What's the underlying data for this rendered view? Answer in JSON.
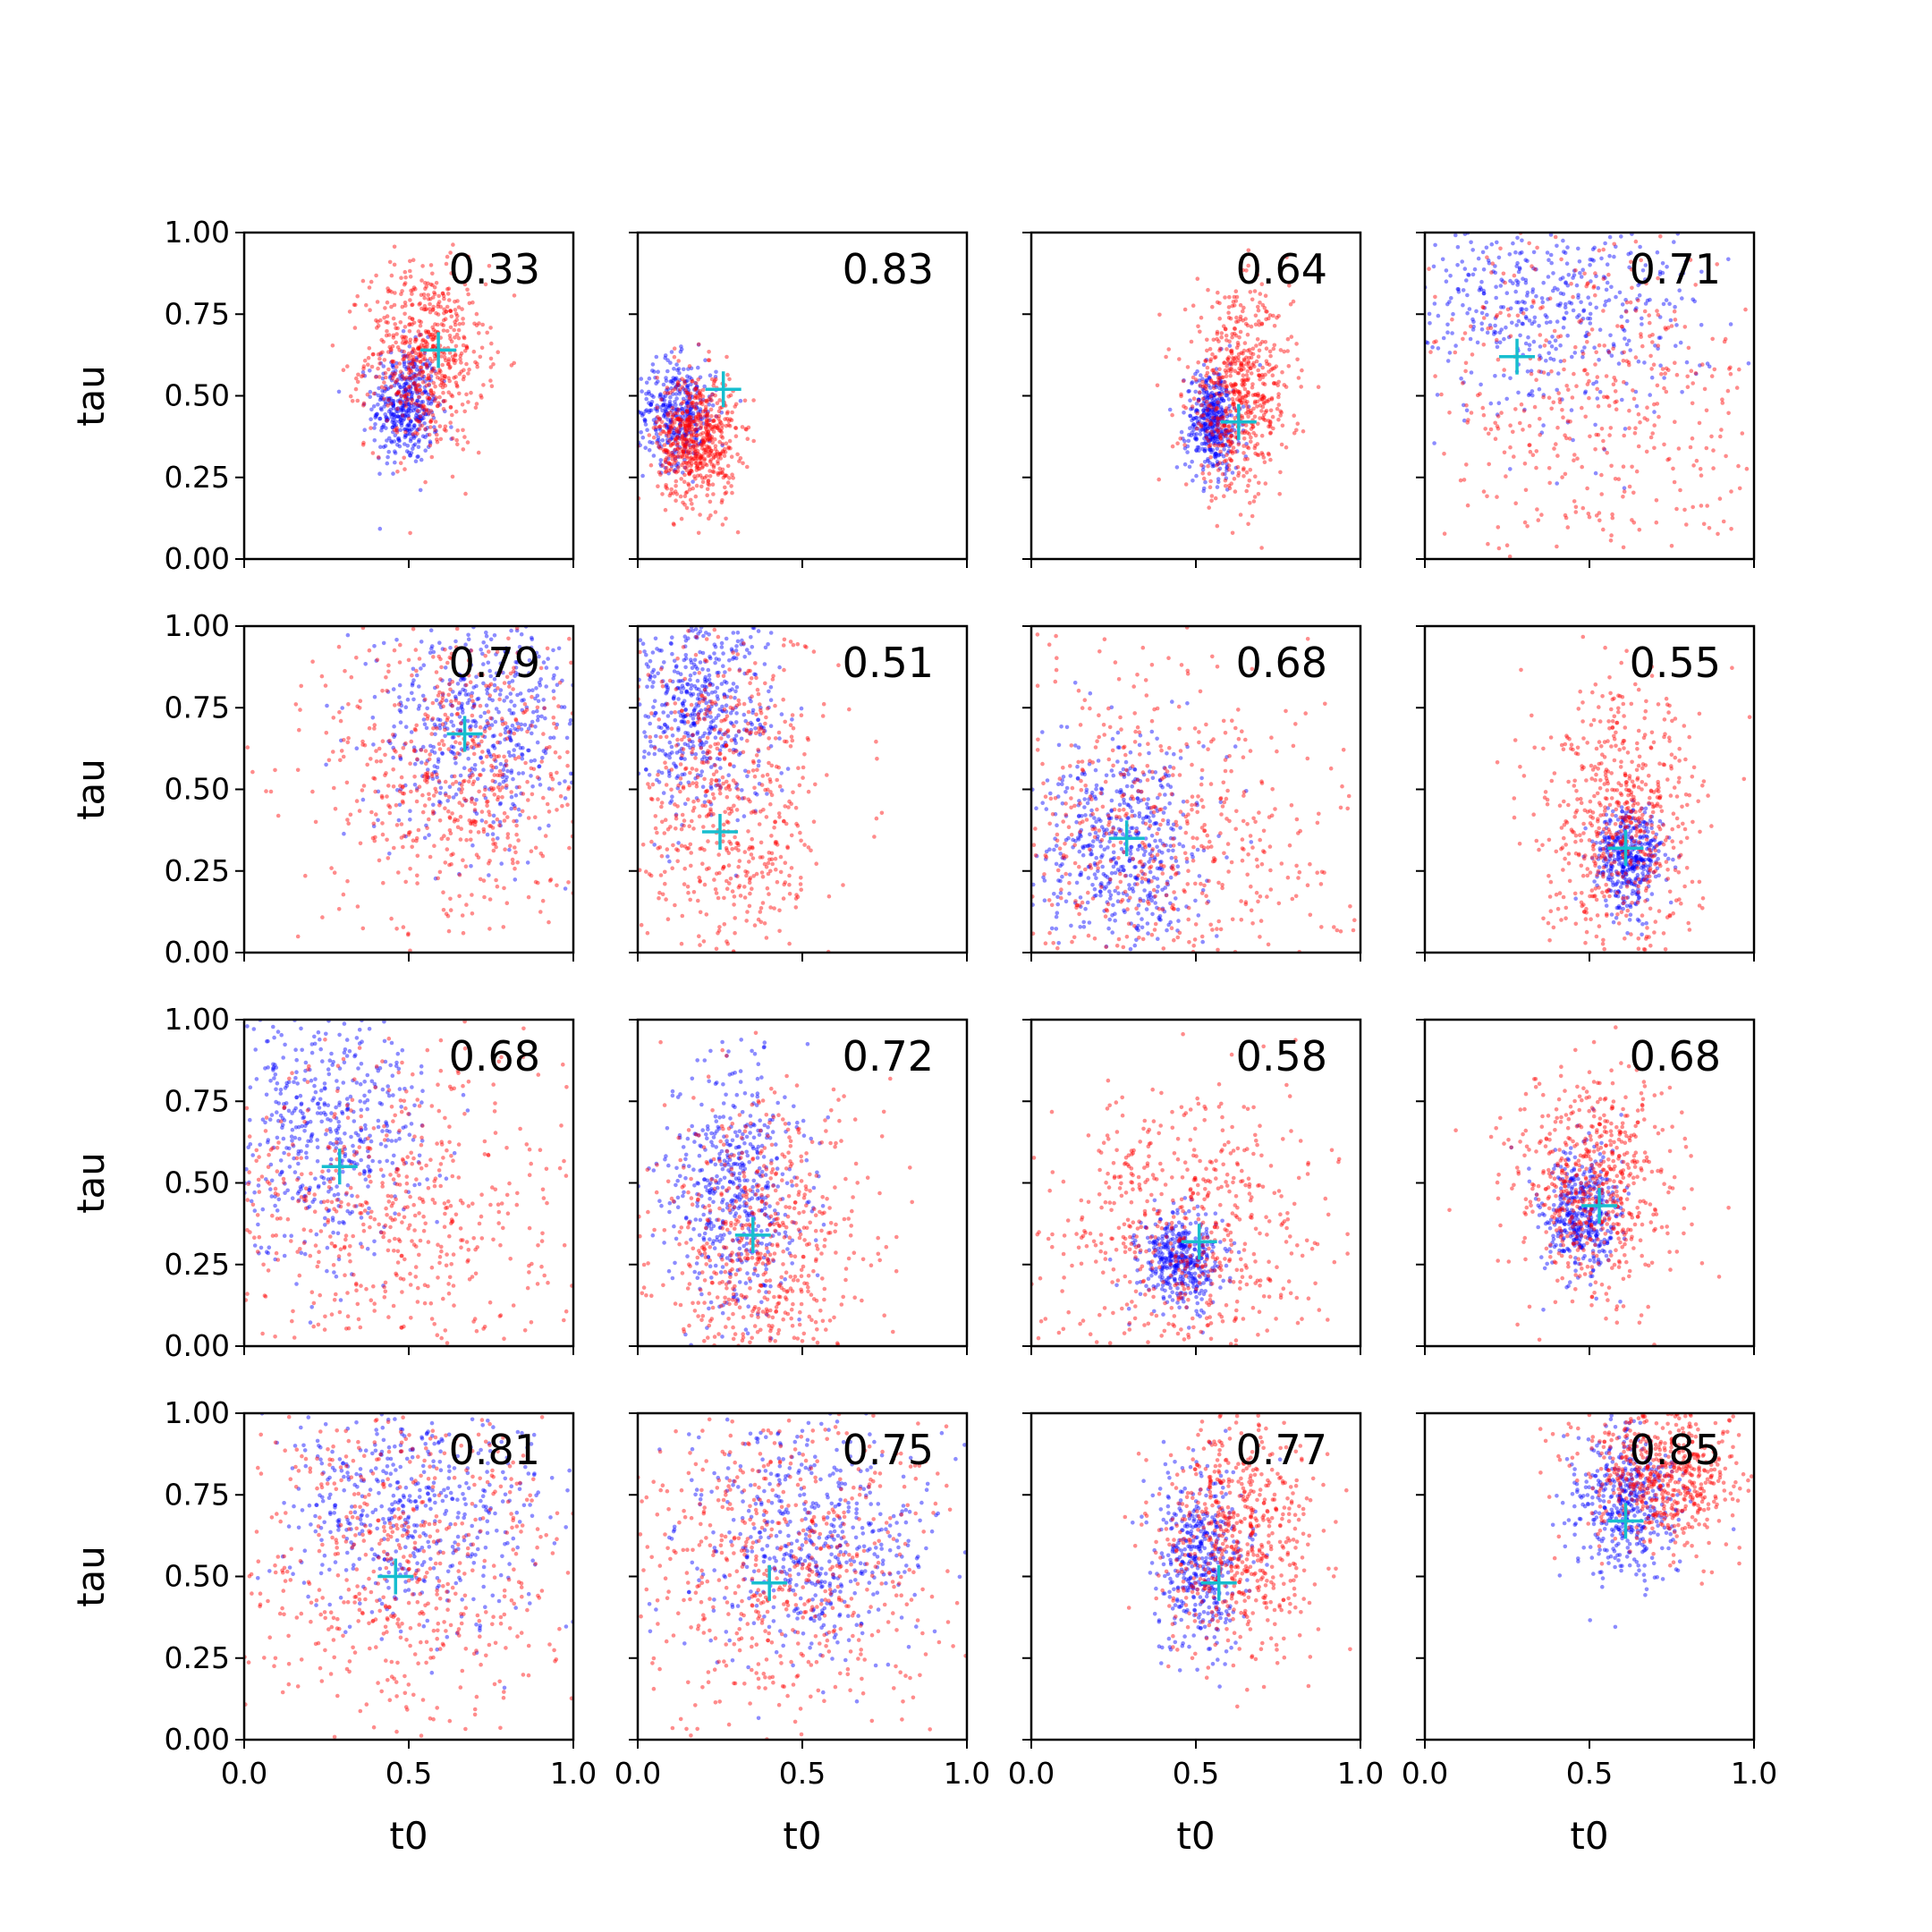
{
  "chart_data": {
    "type": "scatter",
    "layout": {
      "rows": 4,
      "cols": 4
    },
    "xlabel": "t0",
    "ylabel": "tau",
    "xlim": [
      0.0,
      1.0
    ],
    "ylim": [
      0.0,
      1.0
    ],
    "xticks": [
      "0.0",
      "0.5",
      "1.0"
    ],
    "yticks": [
      "0.00",
      "0.25",
      "0.50",
      "0.75",
      "1.00"
    ],
    "colors": {
      "series_a": "#0000ff",
      "series_b": "#ff0000",
      "marker": "#17becf"
    },
    "marker_shape": "plus",
    "panels": [
      {
        "label": "0.33",
        "marker": [
          0.59,
          0.64
        ],
        "a": {
          "cx": 0.49,
          "cy": 0.47,
          "sx": 0.05,
          "sy": 0.09,
          "n": 420
        },
        "b": {
          "cx": 0.55,
          "cy": 0.62,
          "sx": 0.09,
          "sy": 0.14,
          "n": 620
        }
      },
      {
        "label": "0.83",
        "marker": [
          0.26,
          0.52
        ],
        "a": {
          "cx": 0.12,
          "cy": 0.45,
          "sx": 0.06,
          "sy": 0.08,
          "n": 380
        },
        "b": {
          "cx": 0.18,
          "cy": 0.37,
          "sx": 0.06,
          "sy": 0.1,
          "n": 620
        }
      },
      {
        "label": "0.64",
        "marker": [
          0.63,
          0.42
        ],
        "a": {
          "cx": 0.55,
          "cy": 0.42,
          "sx": 0.04,
          "sy": 0.08,
          "n": 420
        },
        "b": {
          "cx": 0.63,
          "cy": 0.5,
          "sx": 0.08,
          "sy": 0.15,
          "n": 620
        }
      },
      {
        "label": "0.71",
        "marker": [
          0.28,
          0.62
        ],
        "a": {
          "cx": 0.35,
          "cy": 0.78,
          "sx": 0.25,
          "sy": 0.16,
          "n": 520
        },
        "b": {
          "cx": 0.55,
          "cy": 0.45,
          "sx": 0.3,
          "sy": 0.3,
          "n": 520
        }
      },
      {
        "label": "0.79",
        "marker": [
          0.67,
          0.67
        ],
        "a": {
          "cx": 0.72,
          "cy": 0.7,
          "sx": 0.16,
          "sy": 0.17,
          "n": 520
        },
        "b": {
          "cx": 0.65,
          "cy": 0.55,
          "sx": 0.2,
          "sy": 0.25,
          "n": 620
        }
      },
      {
        "label": "0.51",
        "marker": [
          0.25,
          0.37
        ],
        "a": {
          "cx": 0.18,
          "cy": 0.75,
          "sx": 0.12,
          "sy": 0.15,
          "n": 520
        },
        "b": {
          "cx": 0.28,
          "cy": 0.45,
          "sx": 0.14,
          "sy": 0.28,
          "n": 620
        }
      },
      {
        "label": "0.68",
        "marker": [
          0.29,
          0.35
        ],
        "a": {
          "cx": 0.28,
          "cy": 0.32,
          "sx": 0.12,
          "sy": 0.16,
          "n": 520
        },
        "b": {
          "cx": 0.4,
          "cy": 0.35,
          "sx": 0.28,
          "sy": 0.28,
          "n": 620
        }
      },
      {
        "label": "0.55",
        "marker": [
          0.61,
          0.32
        ],
        "a": {
          "cx": 0.62,
          "cy": 0.29,
          "sx": 0.05,
          "sy": 0.08,
          "n": 420
        },
        "b": {
          "cx": 0.6,
          "cy": 0.38,
          "sx": 0.12,
          "sy": 0.2,
          "n": 620
        }
      },
      {
        "label": "0.68",
        "marker": [
          0.29,
          0.55
        ],
        "a": {
          "cx": 0.25,
          "cy": 0.68,
          "sx": 0.15,
          "sy": 0.2,
          "n": 520
        },
        "b": {
          "cx": 0.45,
          "cy": 0.4,
          "sx": 0.28,
          "sy": 0.28,
          "n": 620
        }
      },
      {
        "label": "0.72",
        "marker": [
          0.35,
          0.34
        ],
        "a": {
          "cx": 0.3,
          "cy": 0.48,
          "sx": 0.1,
          "sy": 0.2,
          "n": 520
        },
        "b": {
          "cx": 0.38,
          "cy": 0.3,
          "sx": 0.16,
          "sy": 0.22,
          "n": 620
        }
      },
      {
        "label": "0.58",
        "marker": [
          0.51,
          0.32
        ],
        "a": {
          "cx": 0.45,
          "cy": 0.26,
          "sx": 0.06,
          "sy": 0.07,
          "n": 420
        },
        "b": {
          "cx": 0.48,
          "cy": 0.35,
          "sx": 0.2,
          "sy": 0.22,
          "n": 620
        }
      },
      {
        "label": "0.68",
        "marker": [
          0.53,
          0.43
        ],
        "a": {
          "cx": 0.47,
          "cy": 0.4,
          "sx": 0.06,
          "sy": 0.1,
          "n": 420
        },
        "b": {
          "cx": 0.52,
          "cy": 0.48,
          "sx": 0.12,
          "sy": 0.18,
          "n": 620
        }
      },
      {
        "label": "0.81",
        "marker": [
          0.46,
          0.5
        ],
        "a": {
          "cx": 0.5,
          "cy": 0.7,
          "sx": 0.22,
          "sy": 0.18,
          "n": 520
        },
        "b": {
          "cx": 0.5,
          "cy": 0.55,
          "sx": 0.25,
          "sy": 0.28,
          "n": 620
        }
      },
      {
        "label": "0.75",
        "marker": [
          0.4,
          0.48
        ],
        "a": {
          "cx": 0.52,
          "cy": 0.6,
          "sx": 0.18,
          "sy": 0.18,
          "n": 520
        },
        "b": {
          "cx": 0.45,
          "cy": 0.55,
          "sx": 0.25,
          "sy": 0.25,
          "n": 620
        }
      },
      {
        "label": "0.77",
        "marker": [
          0.57,
          0.48
        ],
        "a": {
          "cx": 0.52,
          "cy": 0.55,
          "sx": 0.07,
          "sy": 0.13,
          "n": 450
        },
        "b": {
          "cx": 0.62,
          "cy": 0.62,
          "sx": 0.12,
          "sy": 0.18,
          "n": 620
        }
      },
      {
        "label": "0.85",
        "marker": [
          0.61,
          0.67
        ],
        "a": {
          "cx": 0.6,
          "cy": 0.72,
          "sx": 0.08,
          "sy": 0.12,
          "n": 450
        },
        "b": {
          "cx": 0.72,
          "cy": 0.82,
          "sx": 0.12,
          "sy": 0.12,
          "n": 620
        }
      }
    ]
  }
}
